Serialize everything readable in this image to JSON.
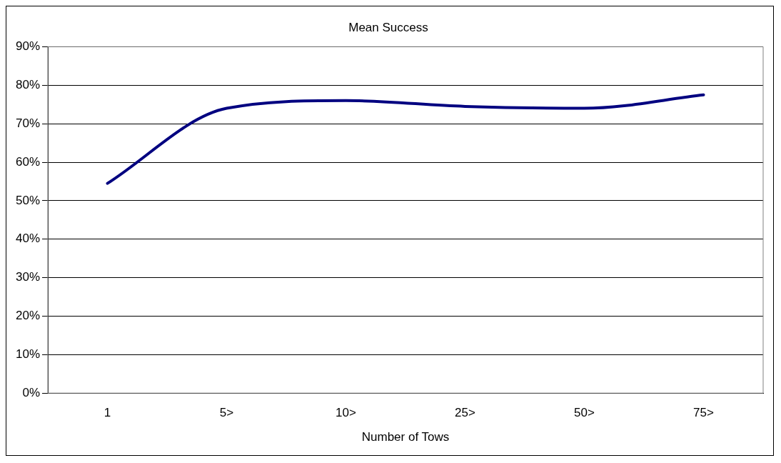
{
  "chart_data": {
    "type": "line",
    "title": "Mean Success",
    "xlabel": "Number of Tows",
    "categories": [
      "1",
      "5>",
      "10>",
      "25>",
      "50>",
      "75>"
    ],
    "series": [
      {
        "color": "#000080",
        "values": [
          54.5,
          74,
          76,
          74.5,
          74,
          77.5
        ]
      }
    ],
    "ylim": [
      0,
      90
    ],
    "yticks": [
      {
        "value": 0,
        "label": "0%"
      },
      {
        "value": 10,
        "label": "10%"
      },
      {
        "value": 20,
        "label": "20%"
      },
      {
        "value": 30,
        "label": "30%"
      },
      {
        "value": 40,
        "label": "40%"
      },
      {
        "value": 50,
        "label": "50%"
      },
      {
        "value": 60,
        "label": "60%"
      },
      {
        "value": 70,
        "label": "70%"
      },
      {
        "value": 80,
        "label": "80%"
      },
      {
        "value": 90,
        "label": "90%"
      }
    ],
    "grid": "y",
    "legend": false,
    "marker": "none",
    "line_style": "solid"
  }
}
